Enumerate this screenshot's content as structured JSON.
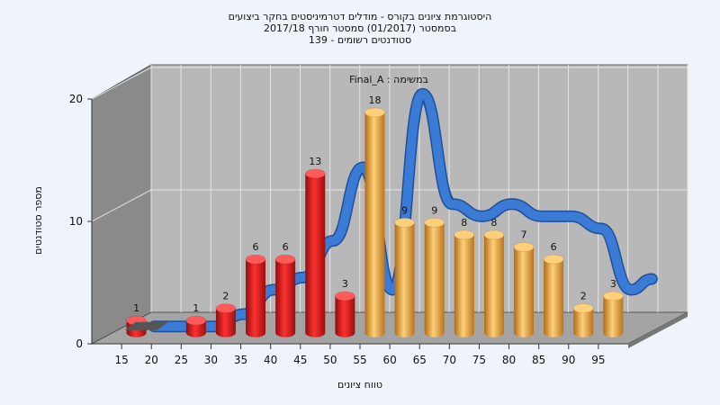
{
  "header": {
    "title": "היסטוגרמת ציונים בקורס - מודלים דטרמיניסטים בחקר ביצועים",
    "subtitle1": "בסמסטר  (01/2017)  סמסטר חורף 2017/18",
    "subtitle2": "סטודנטים רשומים - 139"
  },
  "chart_data": {
    "type": "bar",
    "title": "היסטוגרמת ציונים בקורס - מודלים דטרמיניסטים בחקר ביצועים",
    "xlabel": "טווח ציונים",
    "ylabel": "מספר סטודנטים",
    "annotation": "במשימה : Final_A",
    "ylim": [
      0,
      20
    ],
    "y_ticks": [
      0,
      10,
      20
    ],
    "x_ticks": [
      "15",
      "20",
      "25",
      "30",
      "35",
      "40",
      "45",
      "50",
      "55",
      "60",
      "65",
      "70",
      "75",
      "80",
      "85",
      "90",
      "95"
    ],
    "categories": [
      "15",
      "20",
      "25",
      "30",
      "35",
      "40",
      "45",
      "50",
      "55",
      "60",
      "65",
      "70",
      "75",
      "80",
      "85",
      "90",
      "95"
    ],
    "values": [
      1,
      0,
      1,
      2,
      6,
      6,
      13,
      3,
      18,
      9,
      9,
      8,
      8,
      7,
      6,
      2,
      3
    ],
    "bar_colors": [
      "red",
      "red",
      "red",
      "red",
      "red",
      "red",
      "red",
      "red",
      "orange",
      "orange",
      "orange",
      "orange",
      "orange",
      "orange",
      "orange",
      "orange",
      "orange"
    ],
    "colors": {
      "red": "#dd1f1f",
      "orange": "#e9a33b",
      "curve": "#3a7bd5",
      "wall": "#b8b8b8",
      "side_wall": "#8a8a8a"
    },
    "series": [
      {
        "type": "line",
        "values": [
          0,
          0,
          0,
          1,
          3,
          4,
          7,
          13,
          3,
          19,
          10,
          9,
          10,
          9,
          9,
          8,
          3
        ]
      }
    ],
    "grid": true
  }
}
